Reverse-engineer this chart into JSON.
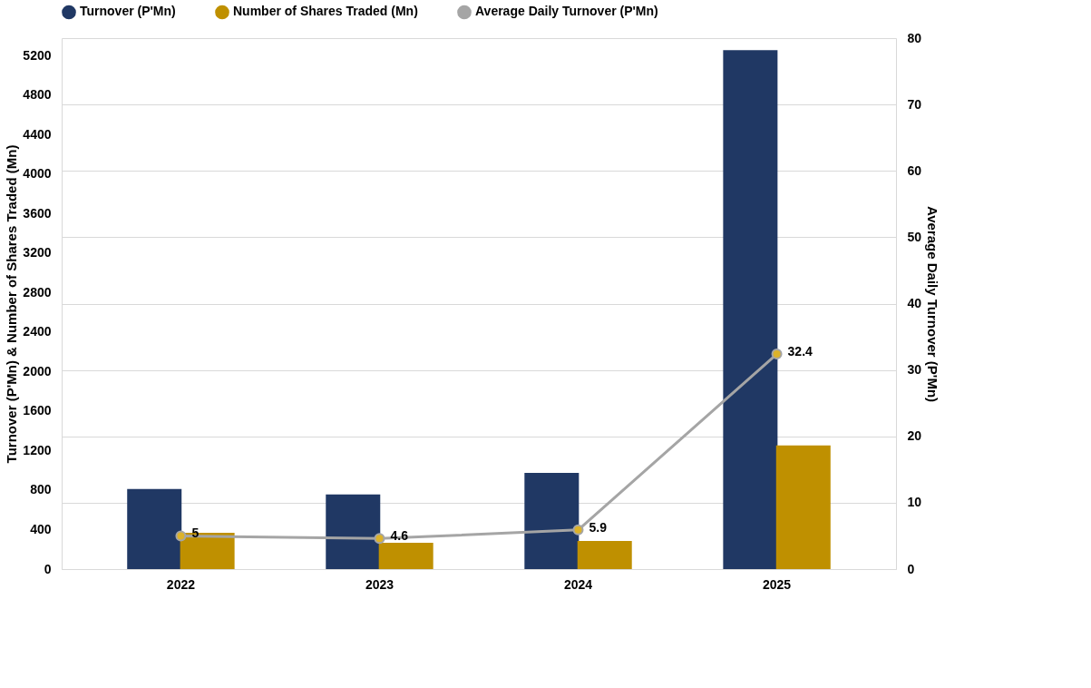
{
  "chart_data": {
    "type": "bar",
    "categories": [
      "2022",
      "2023",
      "2024",
      "2025"
    ],
    "ylabel": "Turnover (P'Mn) & Number of Shares Traded (Mn)",
    "y2label": "Average Daily Turnover (P'Mn)",
    "ylim": [
      0,
      5375
    ],
    "yticks": [
      0,
      400,
      800,
      1200,
      1600,
      2000,
      2400,
      2800,
      3200,
      3600,
      4000,
      4400,
      4800,
      5200
    ],
    "y2lim": [
      0,
      80
    ],
    "y2ticks": [
      0,
      10,
      20,
      30,
      40,
      50,
      60,
      70,
      80
    ],
    "grid": true,
    "legend": "top",
    "marker": "circle",
    "line_style": "solid",
    "series": [
      {
        "name": "Turnover (P'Mn)",
        "color": "#203864",
        "values": [
          810,
          755,
          975,
          5253
        ]
      },
      {
        "name": "Number of Shares Traded (Mn)",
        "color": "#bf9000",
        "values": [
          368,
          267,
          285,
          1251
        ]
      },
      {
        "name": "Average Daily Turnover (P'Mn)",
        "type": "line",
        "axis": "y2",
        "color": "#a5a5a5",
        "values": [
          5,
          4.6,
          5.9,
          32.4
        ],
        "value_labels": [
          "5",
          "4.6",
          "5.9",
          "32.4"
        ]
      }
    ]
  }
}
